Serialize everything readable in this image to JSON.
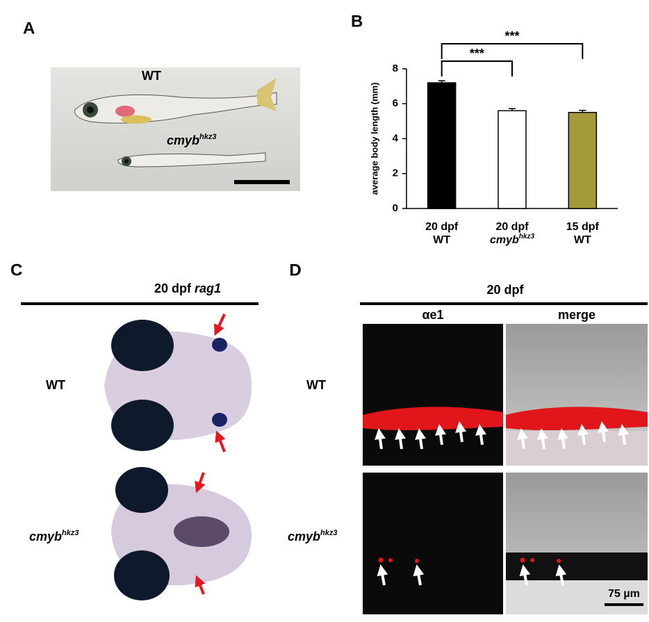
{
  "panels": {
    "A": {
      "label": "A",
      "wt_label": "WT",
      "mutant_label": {
        "text": "cmyb",
        "sup": "hkz3"
      }
    },
    "C": {
      "label": "C",
      "title": {
        "text": "20 dpf ",
        "gene": "rag1"
      },
      "row_labels": {
        "wt": "WT",
        "mutant": {
          "text": "cmyb",
          "sup": "hkz3"
        }
      }
    },
    "D": {
      "label": "D",
      "title": "20 dpf",
      "column_labels": [
        "αe1",
        "merge"
      ],
      "row_labels": {
        "wt": "WT",
        "mutant": {
          "text": "cmyb",
          "sup": "hkz3"
        }
      },
      "scale_bar": "75 µm"
    }
  },
  "chart_data": {
    "type": "bar",
    "panel_label": "B",
    "ylabel": "average body length (mm)",
    "categories": [
      {
        "line1": "20 dpf",
        "line2": "WT"
      },
      {
        "line1": "20 dpf",
        "line2": "cmyb",
        "sup": "hkz3"
      },
      {
        "line1": "15 dpf",
        "line2": "WT"
      }
    ],
    "values": [
      7.2,
      5.6,
      5.5
    ],
    "errors": [
      0.12,
      0.12,
      0.12
    ],
    "colors": [
      "#000000",
      "#ffffff",
      "#a59a3a"
    ],
    "edgecolor": "#000000",
    "ylim": [
      0,
      8
    ],
    "yticks": [
      0,
      2,
      4,
      6,
      8
    ],
    "significance": [
      {
        "label": "***",
        "between": [
          0,
          1
        ]
      },
      {
        "label": "***",
        "between": [
          0,
          2
        ]
      }
    ]
  }
}
